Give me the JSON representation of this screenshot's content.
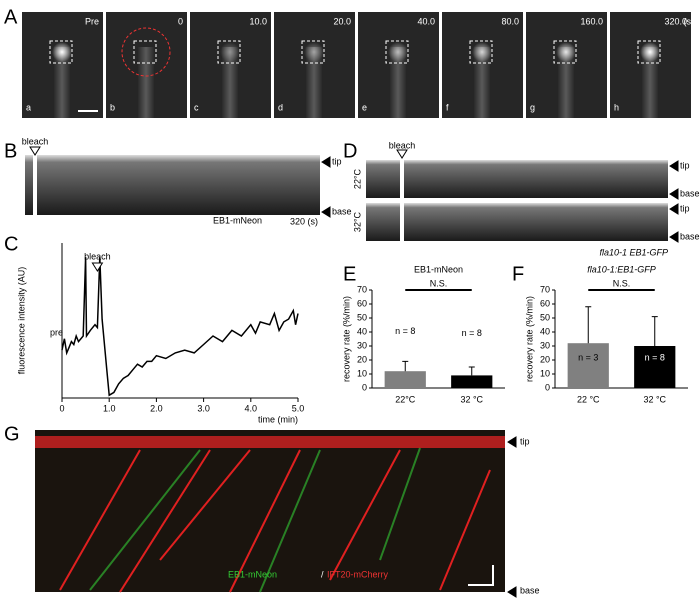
{
  "panel_labels": [
    "A",
    "B",
    "C",
    "D",
    "E",
    "F",
    "G"
  ],
  "panel_a": {
    "times": [
      "Pre",
      "0",
      "10.0",
      "20.0",
      "40.0",
      "80.0",
      "160.0",
      "320.0"
    ],
    "unit": "(s)",
    "frames": [
      "a",
      "b",
      "c",
      "d",
      "e",
      "f",
      "g",
      "h"
    ]
  },
  "panel_b": {
    "bleach": "bleach",
    "tip": "tip",
    "base": "base",
    "label": "EB1-mNeon",
    "time": "320 (s)"
  },
  "panel_d": {
    "bleach": "bleach",
    "rows": [
      {
        "temp": "22°C",
        "tip": "tip",
        "base": "base"
      },
      {
        "temp": "32°C",
        "tip": "tip",
        "base": "base"
      }
    ],
    "label": "fla10-1 EB1-GFP"
  },
  "panel_g": {
    "label_green": "EB1-mNeon",
    "sep": "/",
    "label_red": "IFT20-mCherry",
    "tip": "tip",
    "base": "base"
  },
  "chart_data": [
    {
      "type": "line",
      "ylabel": "fluorescence intensity (AU)",
      "xlabel": "time (min)",
      "annotations": [
        "pre",
        "bleach"
      ],
      "color": "#000000",
      "x": [
        0,
        0.05,
        0.1,
        0.15,
        0.2,
        0.25,
        0.3,
        0.35,
        0.4,
        0.45,
        0.5,
        0.52,
        0.6,
        0.7,
        0.75,
        0.8,
        0.85,
        0.95,
        1.0,
        1.1,
        1.2,
        1.3,
        1.4,
        1.5,
        1.6,
        1.7,
        1.8,
        1.9,
        2.0,
        2.2,
        2.4,
        2.6,
        2.8,
        3.0,
        3.2,
        3.4,
        3.6,
        3.8,
        4.0,
        4.1,
        4.2,
        4.4,
        4.5,
        4.6,
        4.7,
        4.8,
        4.9,
        4.95,
        5.0
      ],
      "values": [
        17,
        21,
        16,
        18,
        20,
        19,
        22,
        20,
        21,
        22,
        50,
        22,
        24,
        26,
        25,
        50,
        28,
        10,
        1,
        2,
        5,
        7,
        8,
        10,
        12,
        11,
        13,
        13,
        15,
        14,
        16,
        17,
        16,
        19,
        22,
        20,
        24,
        22,
        26,
        23,
        27,
        26,
        30,
        24,
        27,
        28,
        31,
        26,
        30
      ],
      "xlim": [
        0,
        5
      ],
      "xticks": [
        0,
        {
          "value": 1,
          "label": "1.0"
        },
        {
          "value": 2,
          "label": "2.0"
        },
        {
          "value": 3,
          "label": "3.0"
        },
        {
          "value": 4,
          "label": "4.0"
        },
        {
          "value": 5,
          "label": "5.0"
        }
      ],
      "ylim": [
        0,
        55
      ]
    },
    {
      "type": "bar",
      "title": "EB1-mNeon",
      "significance": "N.S.",
      "ylabel": "recovery rate (%/min)",
      "categories": [
        "22°C",
        "32 °C"
      ],
      "values": [
        12,
        9
      ],
      "errors": [
        7,
        6
      ],
      "colors": [
        "#808080",
        "#000000"
      ],
      "n_labels": [
        "n = 8",
        "n = 8"
      ],
      "ylim": [
        0,
        70
      ],
      "yticks": [
        0,
        10,
        20,
        30,
        40,
        50,
        60,
        70
      ]
    },
    {
      "type": "bar",
      "title": "fla10-1:EB1-GFP",
      "significance": "N.S.",
      "ylabel": "recovery rate (%/min)",
      "categories": [
        "22 °C",
        "32 °C"
      ],
      "values": [
        32,
        30
      ],
      "errors": [
        26,
        21
      ],
      "colors": [
        "#808080",
        "#000000"
      ],
      "n_labels": [
        "n = 3",
        "n = 8"
      ],
      "ylim": [
        0,
        70
      ],
      "yticks": [
        0,
        10,
        20,
        30,
        40,
        50,
        60,
        70
      ]
    }
  ]
}
